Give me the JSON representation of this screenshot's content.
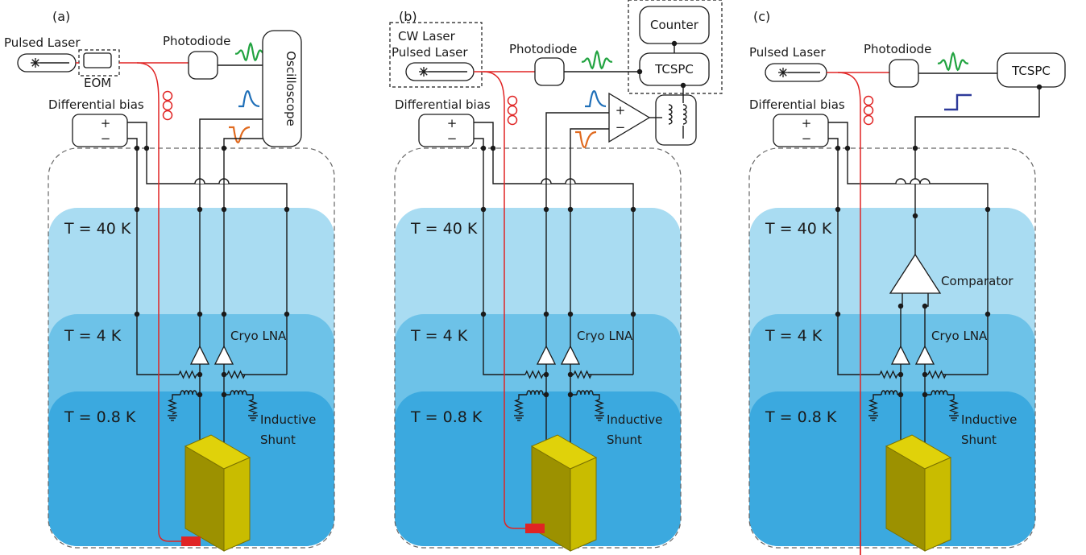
{
  "panels": [
    {
      "id": "a",
      "label": "(a)",
      "laser": [
        "Pulsed Laser"
      ],
      "eom": "EOM",
      "photodiode": "Photodiode",
      "readout": "Oscilloscope",
      "bias": "Differential bias",
      "temps": [
        "T = 40 K",
        "T = 4 K",
        "T = 0.8 K"
      ],
      "amp": "Cryo LNA",
      "shunt": [
        "Inductive",
        "Shunt"
      ]
    },
    {
      "id": "b",
      "label": "(b)",
      "laser": [
        "CW Laser",
        "Pulsed Laser"
      ],
      "photodiode": "Photodiode",
      "counter": "Counter",
      "tcspc": "TCSPC",
      "bias": "Differential bias",
      "temps": [
        "T = 40 K",
        "T = 4 K",
        "T = 0.8 K"
      ],
      "amp": "Cryo LNA",
      "shunt": [
        "Inductive",
        "Shunt"
      ]
    },
    {
      "id": "c",
      "label": "(c)",
      "laser": [
        "Pulsed Laser"
      ],
      "photodiode": "Photodiode",
      "tcspc": "TCSPC",
      "bias": "Differential bias",
      "temps": [
        "T = 40 K",
        "T = 4 K",
        "T = 0.8 K"
      ],
      "amp": "Cryo LNA",
      "comparator": "Comparator",
      "shunt": [
        "Inductive",
        "Shunt"
      ]
    }
  ],
  "symbols": {
    "plus": "+",
    "minus": "−"
  },
  "colors": {
    "zone_40K": "#a9dcf2",
    "zone_4K": "#6dc2e8",
    "zone_08K": "#3ba9df",
    "fiber": "#e02424",
    "photodiode_pulse": "#21a340",
    "pulse_positive": "#1f6fb8",
    "pulse_negative": "#e06a1f",
    "comparator_step": "#2e3a9a",
    "device_top": "#e0d20a",
    "device_front": "#9c9100",
    "device_side": "#c9bc00",
    "laser_spot": "#e02424"
  }
}
